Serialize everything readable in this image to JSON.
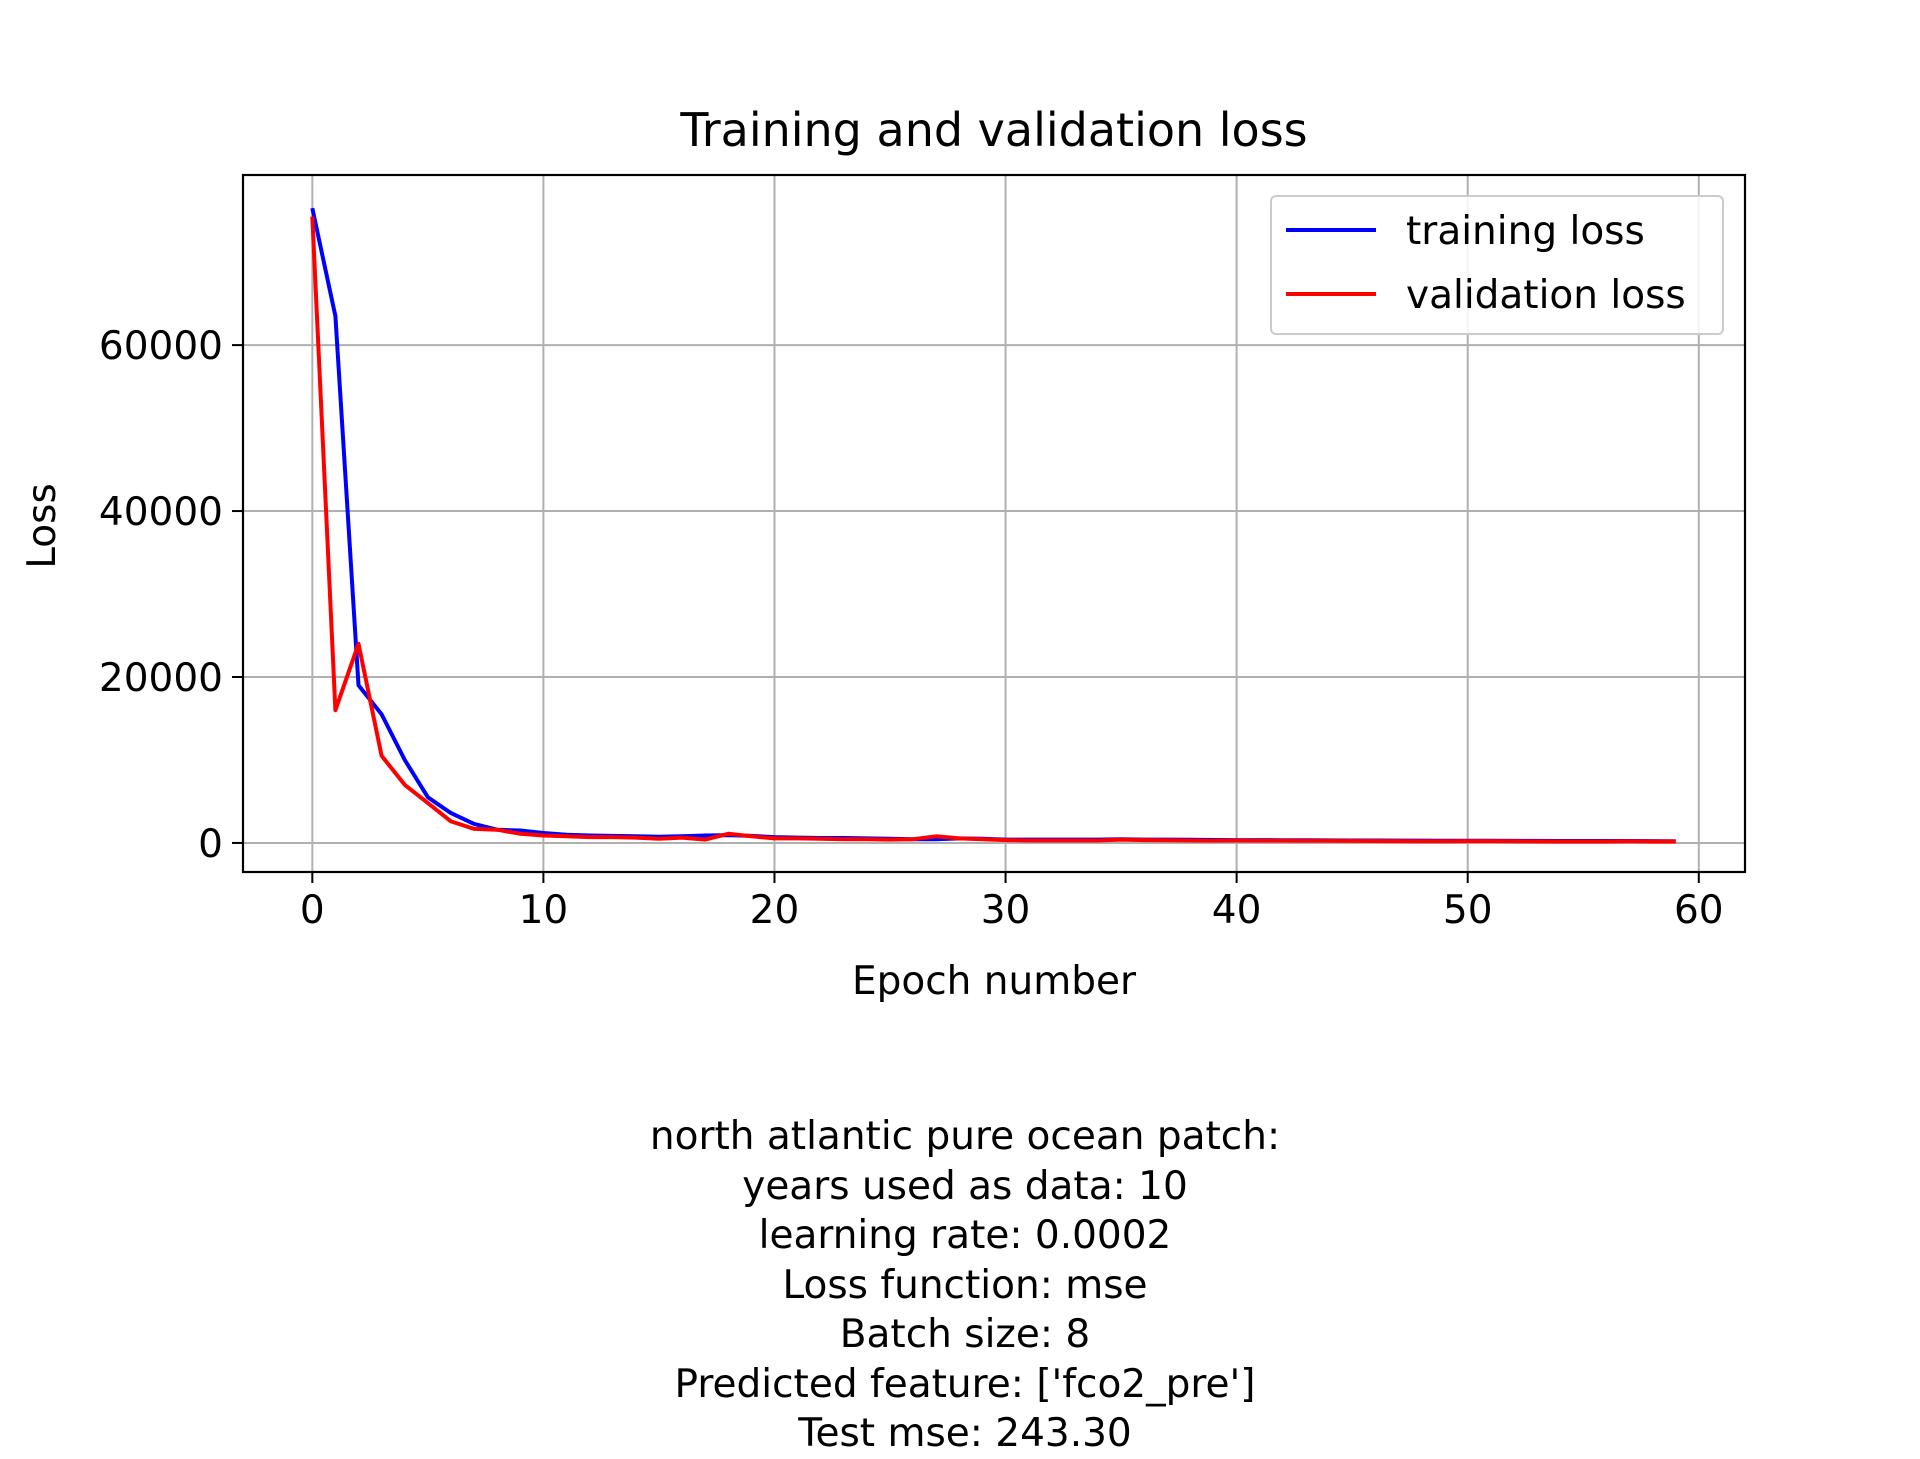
{
  "chart_data": {
    "type": "line",
    "title": "Training and validation loss",
    "xlabel": "Epoch number",
    "ylabel": "Loss",
    "xlim": [
      -3,
      62
    ],
    "ylim": [
      -3500,
      80500
    ],
    "xticks": [
      0,
      10,
      20,
      30,
      40,
      50,
      60
    ],
    "yticks": [
      0,
      20000,
      40000,
      60000
    ],
    "xtick_labels": [
      "0",
      "10",
      "20",
      "30",
      "40",
      "50",
      "60"
    ],
    "ytick_labels": [
      "0",
      "20000",
      "40000",
      "60000"
    ],
    "grid": true,
    "legend": "top-right",
    "series": [
      {
        "name": "training loss",
        "color": "#0000ff",
        "x": [
          0,
          1,
          2,
          3,
          4,
          5,
          6,
          7,
          8,
          9,
          10,
          11,
          12,
          13,
          14,
          15,
          16,
          17,
          18,
          19,
          20,
          21,
          22,
          23,
          24,
          25,
          26,
          27,
          28,
          29,
          30,
          31,
          32,
          33,
          34,
          35,
          36,
          37,
          38,
          39,
          40,
          41,
          42,
          43,
          44,
          45,
          46,
          47,
          48,
          49,
          50,
          51,
          52,
          53,
          54,
          55,
          56,
          57,
          58,
          59
        ],
        "values": [
          76500,
          63500,
          19000,
          15500,
          10000,
          5500,
          3600,
          2300,
          1600,
          1500,
          1200,
          1000,
          900,
          850,
          800,
          750,
          800,
          900,
          950,
          850,
          700,
          650,
          600,
          600,
          550,
          500,
          450,
          450,
          550,
          500,
          400,
          400,
          400,
          400,
          400,
          450,
          400,
          400,
          380,
          360,
          350,
          340,
          330,
          320,
          310,
          300,
          300,
          290,
          280,
          270,
          260,
          260,
          250,
          250,
          240,
          240,
          230,
          230,
          220,
          210
        ]
      },
      {
        "name": "validation loss",
        "color": "#ff0000",
        "x": [
          0,
          1,
          2,
          3,
          4,
          5,
          6,
          7,
          8,
          9,
          10,
          11,
          12,
          13,
          14,
          15,
          16,
          17,
          18,
          19,
          20,
          21,
          22,
          23,
          24,
          25,
          26,
          27,
          28,
          29,
          30,
          31,
          32,
          33,
          34,
          35,
          36,
          37,
          38,
          39,
          40,
          41,
          42,
          43,
          44,
          45,
          46,
          47,
          48,
          49,
          50,
          51,
          52,
          53,
          54,
          55,
          56,
          57,
          58,
          59
        ],
        "values": [
          75500,
          16000,
          24000,
          10500,
          7000,
          4800,
          2600,
          1700,
          1600,
          1100,
          900,
          800,
          700,
          700,
          650,
          500,
          650,
          400,
          1100,
          800,
          550,
          550,
          500,
          450,
          450,
          400,
          450,
          800,
          550,
          450,
          350,
          300,
          300,
          300,
          300,
          400,
          350,
          320,
          300,
          280,
          300,
          290,
          280,
          270,
          260,
          250,
          230,
          220,
          210,
          200,
          220,
          220,
          200,
          190,
          180,
          180,
          170,
          200,
          180,
          170
        ]
      }
    ]
  },
  "caption": {
    "lines": [
      "north atlantic pure ocean patch:",
      "years used as data: 10",
      "learning rate: 0.0002",
      "Loss function: mse",
      "Batch size: 8",
      "Predicted feature: ['fco2_pre']",
      "Test mse: 243.30"
    ]
  }
}
